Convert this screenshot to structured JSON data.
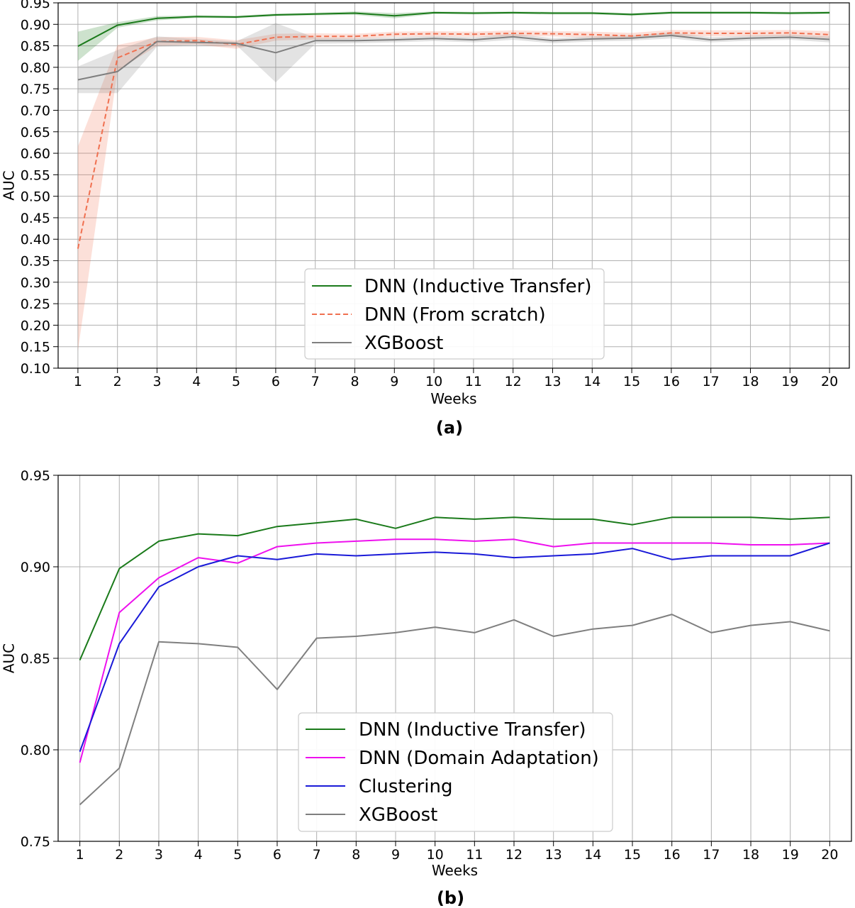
{
  "chart_data": [
    {
      "panel_label": "(a)",
      "type": "line",
      "xlabel": "Weeks",
      "ylabel": "AUC",
      "x": [
        1,
        2,
        3,
        4,
        5,
        6,
        7,
        8,
        9,
        10,
        11,
        12,
        13,
        14,
        15,
        16,
        17,
        18,
        19,
        20
      ],
      "ylim": [
        0.1,
        0.95
      ],
      "yticks": [
        "0.10",
        "0.15",
        "0.20",
        "0.25",
        "0.30",
        "0.35",
        "0.40",
        "0.45",
        "0.50",
        "0.55",
        "0.60",
        "0.65",
        "0.70",
        "0.75",
        "0.80",
        "0.85",
        "0.90",
        "0.95"
      ],
      "grid": true,
      "legend_position": "lower-center",
      "series": [
        {
          "name": "DNN (Inductive Transfer)",
          "color": "#1a7a1a",
          "style": "solid",
          "values": [
            0.849,
            0.898,
            0.914,
            0.918,
            0.917,
            0.922,
            0.924,
            0.926,
            0.92,
            0.927,
            0.926,
            0.927,
            0.926,
            0.926,
            0.923,
            0.927,
            0.927,
            0.927,
            0.926,
            0.927
          ],
          "lower": [
            0.815,
            0.892,
            0.909,
            0.915,
            0.914,
            0.919,
            0.921,
            0.922,
            0.914,
            0.924,
            0.923,
            0.924,
            0.923,
            0.923,
            0.92,
            0.924,
            0.924,
            0.924,
            0.923,
            0.924
          ],
          "upper": [
            0.883,
            0.905,
            0.919,
            0.921,
            0.92,
            0.925,
            0.927,
            0.93,
            0.926,
            0.93,
            0.929,
            0.93,
            0.929,
            0.929,
            0.926,
            0.93,
            0.93,
            0.93,
            0.929,
            0.93
          ]
        },
        {
          "name": "DNN (From scratch)",
          "color": "#f07050",
          "style": "dashed",
          "values": [
            0.378,
            0.822,
            0.86,
            0.862,
            0.853,
            0.87,
            0.872,
            0.872,
            0.877,
            0.878,
            0.877,
            0.879,
            0.878,
            0.876,
            0.873,
            0.88,
            0.879,
            0.879,
            0.88,
            0.876
          ],
          "lower": [
            0.14,
            0.792,
            0.85,
            0.853,
            0.843,
            0.862,
            0.865,
            0.866,
            0.871,
            0.872,
            0.871,
            0.872,
            0.872,
            0.869,
            0.866,
            0.873,
            0.872,
            0.872,
            0.873,
            0.868
          ],
          "upper": [
            0.616,
            0.852,
            0.87,
            0.871,
            0.863,
            0.878,
            0.879,
            0.878,
            0.883,
            0.884,
            0.883,
            0.886,
            0.884,
            0.883,
            0.88,
            0.887,
            0.886,
            0.886,
            0.887,
            0.884
          ]
        },
        {
          "name": "XGBoost",
          "color": "#7f7f7f",
          "style": "solid",
          "values": [
            0.771,
            0.79,
            0.86,
            0.858,
            0.856,
            0.834,
            0.862,
            0.862,
            0.864,
            0.867,
            0.864,
            0.871,
            0.862,
            0.866,
            0.868,
            0.874,
            0.864,
            0.868,
            0.87,
            0.865
          ],
          "lower": [
            0.74,
            0.74,
            0.848,
            0.85,
            0.852,
            0.765,
            0.855,
            0.856,
            0.858,
            0.861,
            0.858,
            0.864,
            0.856,
            0.86,
            0.862,
            0.867,
            0.858,
            0.862,
            0.864,
            0.858
          ],
          "upper": [
            0.802,
            0.84,
            0.872,
            0.866,
            0.86,
            0.903,
            0.869,
            0.868,
            0.87,
            0.873,
            0.87,
            0.878,
            0.868,
            0.872,
            0.874,
            0.881,
            0.87,
            0.874,
            0.876,
            0.872
          ]
        }
      ]
    },
    {
      "panel_label": "(b)",
      "type": "line",
      "xlabel": "Weeks",
      "ylabel": "AUC",
      "x": [
        1,
        2,
        3,
        4,
        5,
        6,
        7,
        8,
        9,
        10,
        11,
        12,
        13,
        14,
        15,
        16,
        17,
        18,
        19,
        20
      ],
      "ylim": [
        0.75,
        0.95
      ],
      "yticks": [
        "0.75",
        "0.80",
        "0.85",
        "0.90",
        "0.95"
      ],
      "grid": true,
      "legend_position": "lower-center",
      "series": [
        {
          "name": "DNN (Inductive Transfer)",
          "color": "#1a7a1a",
          "style": "solid",
          "values": [
            0.849,
            0.899,
            0.914,
            0.918,
            0.917,
            0.922,
            0.924,
            0.926,
            0.921,
            0.927,
            0.926,
            0.927,
            0.926,
            0.926,
            0.923,
            0.927,
            0.927,
            0.927,
            0.926,
            0.927
          ]
        },
        {
          "name": "DNN (Domain Adaptation)",
          "color": "#ee10ee",
          "style": "solid",
          "values": [
            0.793,
            0.875,
            0.894,
            0.905,
            0.902,
            0.911,
            0.913,
            0.914,
            0.915,
            0.915,
            0.914,
            0.915,
            0.911,
            0.913,
            0.913,
            0.913,
            0.913,
            0.912,
            0.912,
            0.913
          ]
        },
        {
          "name": "Clustering",
          "color": "#1a1ad8",
          "style": "solid",
          "values": [
            0.799,
            0.858,
            0.889,
            0.9,
            0.906,
            0.904,
            0.907,
            0.906,
            0.907,
            0.908,
            0.907,
            0.905,
            0.906,
            0.907,
            0.91,
            0.904,
            0.906,
            0.906,
            0.906,
            0.913
          ]
        },
        {
          "name": "XGBoost",
          "color": "#7f7f7f",
          "style": "solid",
          "values": [
            0.77,
            0.79,
            0.859,
            0.858,
            0.856,
            0.833,
            0.861,
            0.862,
            0.864,
            0.867,
            0.864,
            0.871,
            0.862,
            0.866,
            0.868,
            0.874,
            0.864,
            0.868,
            0.87,
            0.865
          ]
        }
      ]
    }
  ]
}
